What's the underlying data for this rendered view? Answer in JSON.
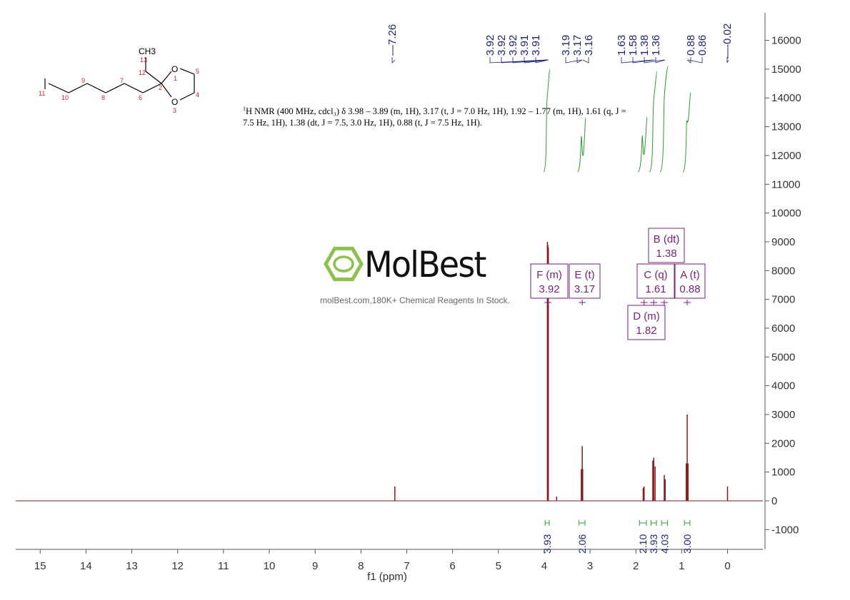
{
  "report": {
    "prefix_sup": "1",
    "text": "H NMR (400 MHz, cdcl₃) δ 3.98 – 3.89 (m, 1H), 3.17 (t, J = 7.0 Hz, 1H), 1.92 – 1.77 (m, 1H), 1.61 (q, J = 7.5 Hz, 1H), 1.38 (dt, J = 7.5, 3.0 Hz, 1H), 0.88 (t, J = 7.5 Hz, 1H)."
  },
  "watermark": {
    "name": "MolBest",
    "caption": "molBest.com,180K+ Chemical Reagents In Stock."
  },
  "structure": {
    "methyl_label": "CH3",
    "oxygen_label": "O",
    "atom_numbers": [
      "13",
      "12",
      "2",
      "1",
      "5",
      "4",
      "3",
      "6",
      "7",
      "8",
      "9",
      "10",
      "11"
    ]
  },
  "colors": {
    "spectrum": "#8b1a1a",
    "peak_labels": "#1a237e",
    "integral": "#2e9e2e",
    "annotation": "#7b1f7b",
    "atom_numbers": "#c62828"
  },
  "chart_data": {
    "type": "line",
    "xlabel": "f1 (ppm)",
    "x_reversed": true,
    "xlim": [
      15.6,
      -0.8
    ],
    "x_ticks": [
      "15",
      "14",
      "13",
      "12",
      "11",
      "10",
      "9",
      "8",
      "7",
      "6",
      "5",
      "4",
      "3",
      "2",
      "1",
      "0"
    ],
    "ylim": [
      -1700,
      17000
    ],
    "y_ticks": [
      "16000",
      "15000",
      "14000",
      "13000",
      "12000",
      "11000",
      "10000",
      "9000",
      "8000",
      "7000",
      "6000",
      "5000",
      "4000",
      "3000",
      "2000",
      "1000",
      "0",
      "-1000"
    ],
    "peaks": [
      {
        "ppm": 7.26,
        "intensity": 500
      },
      {
        "ppm": 3.93,
        "intensity": 9000
      },
      {
        "ppm": 3.92,
        "intensity": 8900
      },
      {
        "ppm": 3.91,
        "intensity": 8800
      },
      {
        "ppm": 3.73,
        "intensity": 150
      },
      {
        "ppm": 3.19,
        "intensity": 1100
      },
      {
        "ppm": 3.17,
        "intensity": 1900
      },
      {
        "ppm": 3.16,
        "intensity": 1100
      },
      {
        "ppm": 1.84,
        "intensity": 450
      },
      {
        "ppm": 1.82,
        "intensity": 500
      },
      {
        "ppm": 1.63,
        "intensity": 1400
      },
      {
        "ppm": 1.61,
        "intensity": 1500
      },
      {
        "ppm": 1.58,
        "intensity": 1200
      },
      {
        "ppm": 1.38,
        "intensity": 900
      },
      {
        "ppm": 1.36,
        "intensity": 750
      },
      {
        "ppm": 0.9,
        "intensity": 1300
      },
      {
        "ppm": 0.88,
        "intensity": 3000
      },
      {
        "ppm": 0.86,
        "intensity": 1300
      },
      {
        "ppm": 0.0,
        "intensity": 500
      }
    ],
    "peak_labels": [
      "7.26",
      "3.92",
      "3.92",
      "3.92",
      "3.91",
      "3.91",
      "3.19",
      "3.17",
      "3.16",
      "1.63",
      "1.58",
      "1.38",
      "1.36",
      "0.88",
      "0.86",
      "-0.02"
    ],
    "integrals": [
      {
        "value": "3.93",
        "from": 3.98,
        "to": 3.89
      },
      {
        "value": "2.06",
        "from": 3.24,
        "to": 3.11
      },
      {
        "value": "2.10",
        "from": 1.92,
        "to": 1.77
      },
      {
        "value": "3.93",
        "from": 1.67,
        "to": 1.55
      },
      {
        "value": "4.03",
        "from": 1.44,
        "to": 1.31
      },
      {
        "value": "3.00",
        "from": 0.94,
        "to": 0.82
      }
    ],
    "multiplets": [
      {
        "letter_type": "F (m)",
        "shift": "3.92"
      },
      {
        "letter_type": "E (t)",
        "shift": "3.17"
      },
      {
        "letter_type": "B (dt)",
        "shift": "1.38"
      },
      {
        "letter_type": "C (q)",
        "shift": "1.61"
      },
      {
        "letter_type": "A (t)",
        "shift": "0.88"
      },
      {
        "letter_type": "D (m)",
        "shift": "1.82"
      }
    ]
  }
}
